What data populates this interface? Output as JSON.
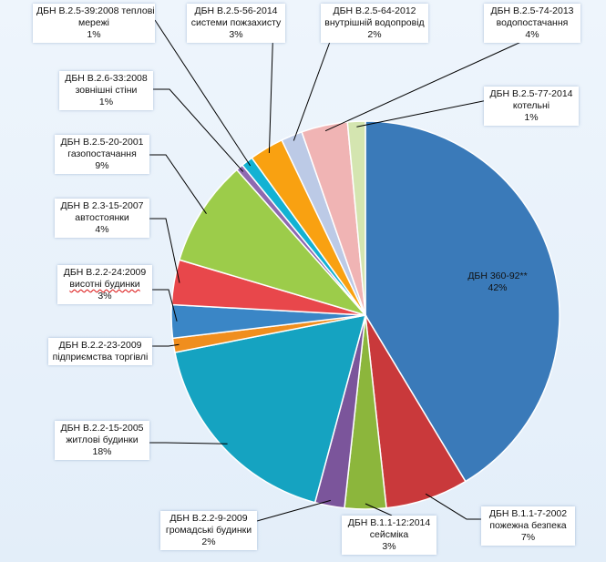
{
  "chart_data": {
    "type": "pie",
    "title": "",
    "slices": [
      {
        "name": "ДБН 360-92**",
        "percent_label": "42%",
        "value": 42,
        "color": "#3a7ab9"
      },
      {
        "name": "ДБН В.1.1-7-2002",
        "subtitle": "пожежна безпека",
        "percent_label": "7%",
        "value": 7,
        "color": "#c9393b"
      },
      {
        "name": "ДБН В.1.1-12:2014",
        "subtitle": "сейсміка",
        "percent_label": "3%",
        "value": 3.5,
        "color": "#8cb63c"
      },
      {
        "name": "ДБН В.2.2-9-2009",
        "subtitle": "громадські будинки",
        "percent_label": "2%",
        "value": 2.5,
        "color": "#7b559b"
      },
      {
        "name": "ДБН В.2.2-15-2005",
        "subtitle": "житлові будинки",
        "percent_label": "18%",
        "value": 18,
        "color": "#15a3c1"
      },
      {
        "name": "ДБН В.2.2-23-2009",
        "subtitle": "підприємства торгівлі",
        "percent_label": "",
        "value": 1.2,
        "color": "#f08e1e"
      },
      {
        "name": "ДБН В.2.2-24:2009",
        "subtitle": "висотні будинки",
        "percent_label": "3%",
        "value": 2.8,
        "color": "#3a86c6"
      },
      {
        "name": "ДБН В 2.3-15-2007",
        "subtitle": "автостоянки",
        "percent_label": "4%",
        "value": 3.8,
        "color": "#e8474b"
      },
      {
        "name": "ДБН В.2.5-20-2001",
        "subtitle": "газопостачання",
        "percent_label": "9%",
        "value": 9,
        "color": "#9ccc4a"
      },
      {
        "name": "ДБН В.2.6-33:2008",
        "subtitle": "зовнішні стіни",
        "percent_label": "1%",
        "value": 0.6,
        "color": "#8e69b0"
      },
      {
        "name": "ДБН В.2.5-39:2008 теплові",
        "subtitle": "мережі",
        "percent_label": "1%",
        "value": 1,
        "color": "#13b2d3"
      },
      {
        "name": "ДБН В.2.5-56-2014",
        "subtitle": "системи пожзахисту",
        "percent_label": "3%",
        "value": 2.9,
        "color": "#f9a111"
      },
      {
        "name": "ДБН В.2.5-64-2012",
        "subtitle": "внутрішній водопровід",
        "percent_label": "2%",
        "value": 1.8,
        "color": "#bccae6"
      },
      {
        "name": "ДБН В.2.5-74-2013",
        "subtitle": "водопостачання",
        "percent_label": "4%",
        "value": 3.9,
        "color": "#f0b4b4"
      },
      {
        "name": "ДБН В.2.5-77-2014",
        "subtitle": "котельні",
        "percent_label": "1%",
        "value": 1.5,
        "color": "#d4e5b0"
      }
    ],
    "legend": "none"
  }
}
